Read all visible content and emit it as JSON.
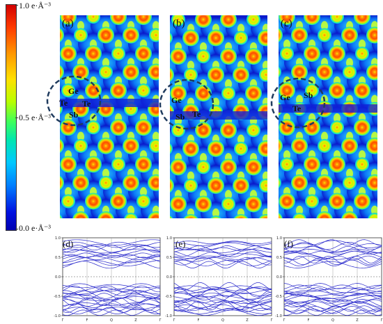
{
  "colorbar": {
    "labels": {
      "top": "1.0 e·Å⁻³",
      "mid": "0.5 e·Å⁻³",
      "bottom": "0.0 e·Å⁻³"
    },
    "stops": [
      "#d10000",
      "#ff6a00",
      "#ffd000",
      "#c8ff00",
      "#4cff4c",
      "#00e6a0",
      "#00c0ff",
      "#0070ff",
      "#0000cc"
    ]
  },
  "density_panels": [
    {
      "label": "(a)",
      "atoms": [
        {
          "text": "Ge"
        },
        {
          "text": "Te"
        },
        {
          "text": "Te"
        },
        {
          "text": "Sb"
        }
      ]
    },
    {
      "label": "(b)",
      "atoms": [
        {
          "text": "Ge"
        },
        {
          "text": "Sb"
        },
        {
          "text": "Te"
        }
      ]
    },
    {
      "label": "(c)",
      "atoms": [
        {
          "text": "Ge"
        },
        {
          "text": "Sb"
        },
        {
          "text": "Te"
        }
      ]
    }
  ],
  "band_panels": [
    {
      "label": "(d)"
    },
    {
      "label": "(e)"
    },
    {
      "label": "(f)"
    }
  ],
  "band_axis": {
    "yticks": [
      "1.0",
      "0.5",
      "0.0",
      "-0.5",
      "-1.0"
    ],
    "xticks": [
      "Γ",
      "F",
      "Q",
      "Z",
      "Γ"
    ]
  },
  "colors": {
    "band_line": "#2a2acc",
    "fermi": "#555555",
    "dash_circle": "#1f3b5e"
  }
}
